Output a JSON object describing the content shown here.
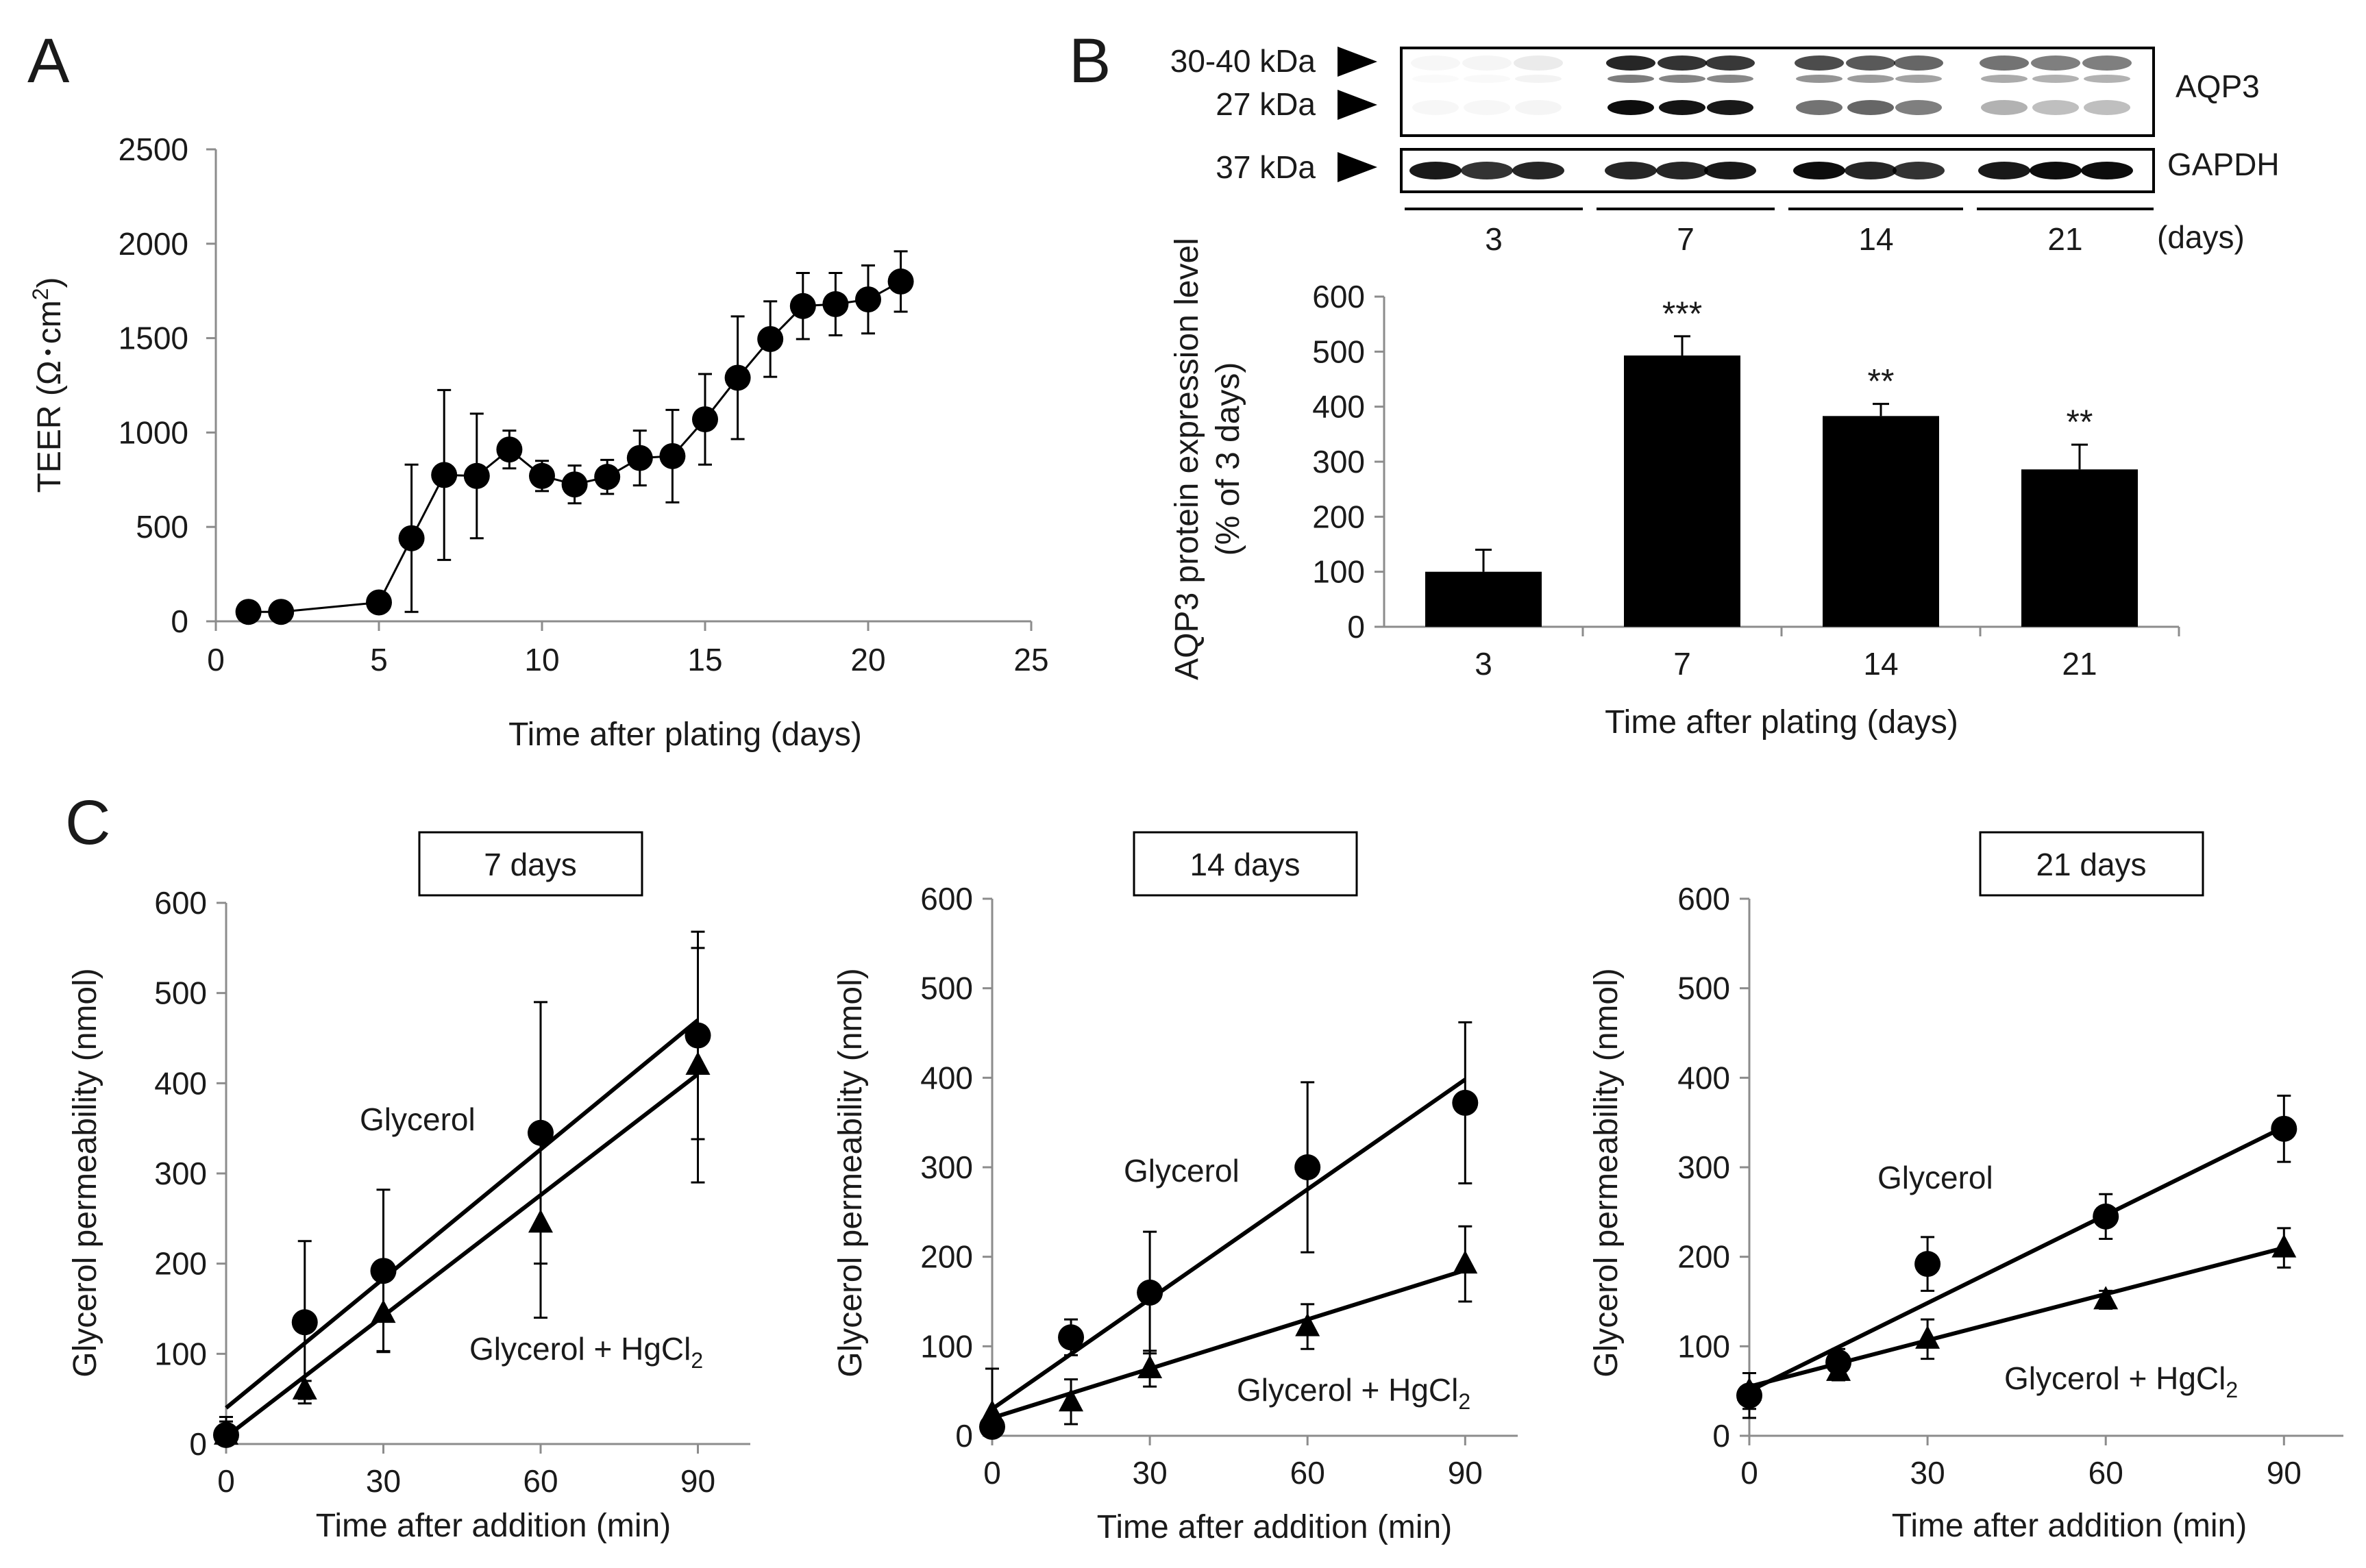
{
  "panels": {
    "a": "A",
    "b": "B",
    "c": "C"
  },
  "blot": {
    "markers": [
      "30-40 kDa",
      "27 kDa",
      "37 kDa"
    ],
    "aqp3_label": "AQP3",
    "gapdh_label": "GAPDH",
    "day_groups": [
      "3",
      "7",
      "14",
      "21"
    ],
    "days_unit": "(days)"
  },
  "legend_texts": {
    "glycerol": "Glycerol",
    "hgcl_prefix": "Glycerol + HgCl",
    "hgcl_sub": "2"
  },
  "chart_data": [
    {
      "id": "A",
      "type": "line",
      "title": "",
      "xlabel": "Time after plating (days)",
      "ylabel": "TEER (Ω･cm²)",
      "ylabel_main": "TEER (Ω･cm",
      "ylabel_sup": "2",
      "ylabel_end": ")",
      "xlim": [
        0,
        25
      ],
      "ylim": [
        0,
        2500
      ],
      "xticks": [
        0,
        5,
        10,
        15,
        20,
        25
      ],
      "yticks": [
        0,
        500,
        1000,
        1500,
        2000,
        2500
      ],
      "series": [
        {
          "name": "TEER",
          "x": [
            1,
            2,
            5,
            6,
            7,
            8,
            9,
            10,
            11,
            12,
            13,
            14,
            15,
            16,
            17,
            18,
            19,
            20,
            21
          ],
          "y": [
            50,
            50,
            100,
            440,
            775,
            770,
            910,
            770,
            725,
            765,
            865,
            875,
            1070,
            1290,
            1495,
            1670,
            1680,
            1705,
            1800
          ],
          "err": [
            0,
            0,
            0,
            390,
            450,
            330,
            100,
            80,
            100,
            90,
            145,
            245,
            240,
            325,
            200,
            175,
            165,
            180,
            160
          ]
        }
      ]
    },
    {
      "id": "B",
      "type": "bar",
      "title": "",
      "xlabel": "Time after plating (days)",
      "ylabel_line1": "AQP3 protein expression level",
      "ylabel_line2": "(% of 3 days)",
      "ylim": [
        0,
        600
      ],
      "yticks": [
        0,
        100,
        200,
        300,
        400,
        500,
        600
      ],
      "categories": [
        "3",
        "7",
        "14",
        "21"
      ],
      "values": [
        100,
        493,
        383,
        286
      ],
      "err": [
        40,
        35,
        22,
        45
      ],
      "significance": [
        "",
        "***",
        "**",
        "**"
      ]
    },
    {
      "id": "C1",
      "type": "scatter",
      "title": "7 days",
      "xlabel": "Time after addition (min)",
      "ylabel": "Glycerol permeability (nmol)",
      "ylim": [
        0,
        600
      ],
      "yticks": [
        0,
        100,
        200,
        300,
        400,
        500,
        600
      ],
      "xticks": [
        0,
        30,
        60,
        90
      ],
      "x": [
        0,
        15,
        30,
        60,
        90
      ],
      "series": [
        {
          "name": "Glycerol",
          "marker": "circle",
          "y": [
            10,
            135,
            192,
            345,
            453
          ],
          "err": [
            20,
            90,
            90,
            145,
            115
          ],
          "fit": [
            40,
            470
          ]
        },
        {
          "name": "Glycerol + HgCl2",
          "marker": "triangle",
          "y": [
            10,
            60,
            145,
            245,
            420
          ],
          "err": [
            15,
            10,
            42,
            105,
            130
          ],
          "fit": [
            8,
            410
          ]
        }
      ]
    },
    {
      "id": "C2",
      "type": "scatter",
      "title": "14 days",
      "xlabel": "Time after addition (min)",
      "ylabel": "Glycerol permeability (nmol)",
      "ylim": [
        0,
        600
      ],
      "yticks": [
        0,
        100,
        200,
        300,
        400,
        500,
        600
      ],
      "xticks": [
        0,
        30,
        60,
        90
      ],
      "x": [
        0,
        15,
        30,
        60,
        90
      ],
      "series": [
        {
          "name": "Glycerol",
          "marker": "circle",
          "y": [
            10,
            110,
            160,
            300,
            372
          ],
          "err": [
            15,
            20,
            68,
            95,
            90
          ],
          "fit": [
            30,
            398
          ]
        },
        {
          "name": "Glycerol + HgCl2",
          "marker": "triangle",
          "y": [
            25,
            38,
            75,
            122,
            192
          ],
          "err": [
            50,
            25,
            20,
            25,
            42
          ],
          "fit": [
            20,
            185
          ]
        }
      ]
    },
    {
      "id": "C3",
      "type": "scatter",
      "title": "21 days",
      "xlabel": "Time after addition (min)",
      "ylabel": "Glycerol permeability (nmol)",
      "ylim": [
        0,
        600
      ],
      "yticks": [
        0,
        100,
        200,
        300,
        400,
        500,
        600
      ],
      "xticks": [
        0,
        30,
        60,
        90
      ],
      "x": [
        0,
        15,
        30,
        60,
        90
      ],
      "series": [
        {
          "name": "Glycerol",
          "marker": "circle",
          "y": [
            45,
            82,
            192,
            245,
            343
          ],
          "err": [
            25,
            15,
            30,
            25,
            37
          ],
          "fit": [
            50,
            345
          ]
        },
        {
          "name": "Glycerol + HgCl2",
          "marker": "triangle",
          "y": [
            50,
            72,
            108,
            152,
            210
          ],
          "err": [
            20,
            10,
            22,
            10,
            22
          ],
          "fit": [
            55,
            210
          ]
        }
      ]
    }
  ]
}
